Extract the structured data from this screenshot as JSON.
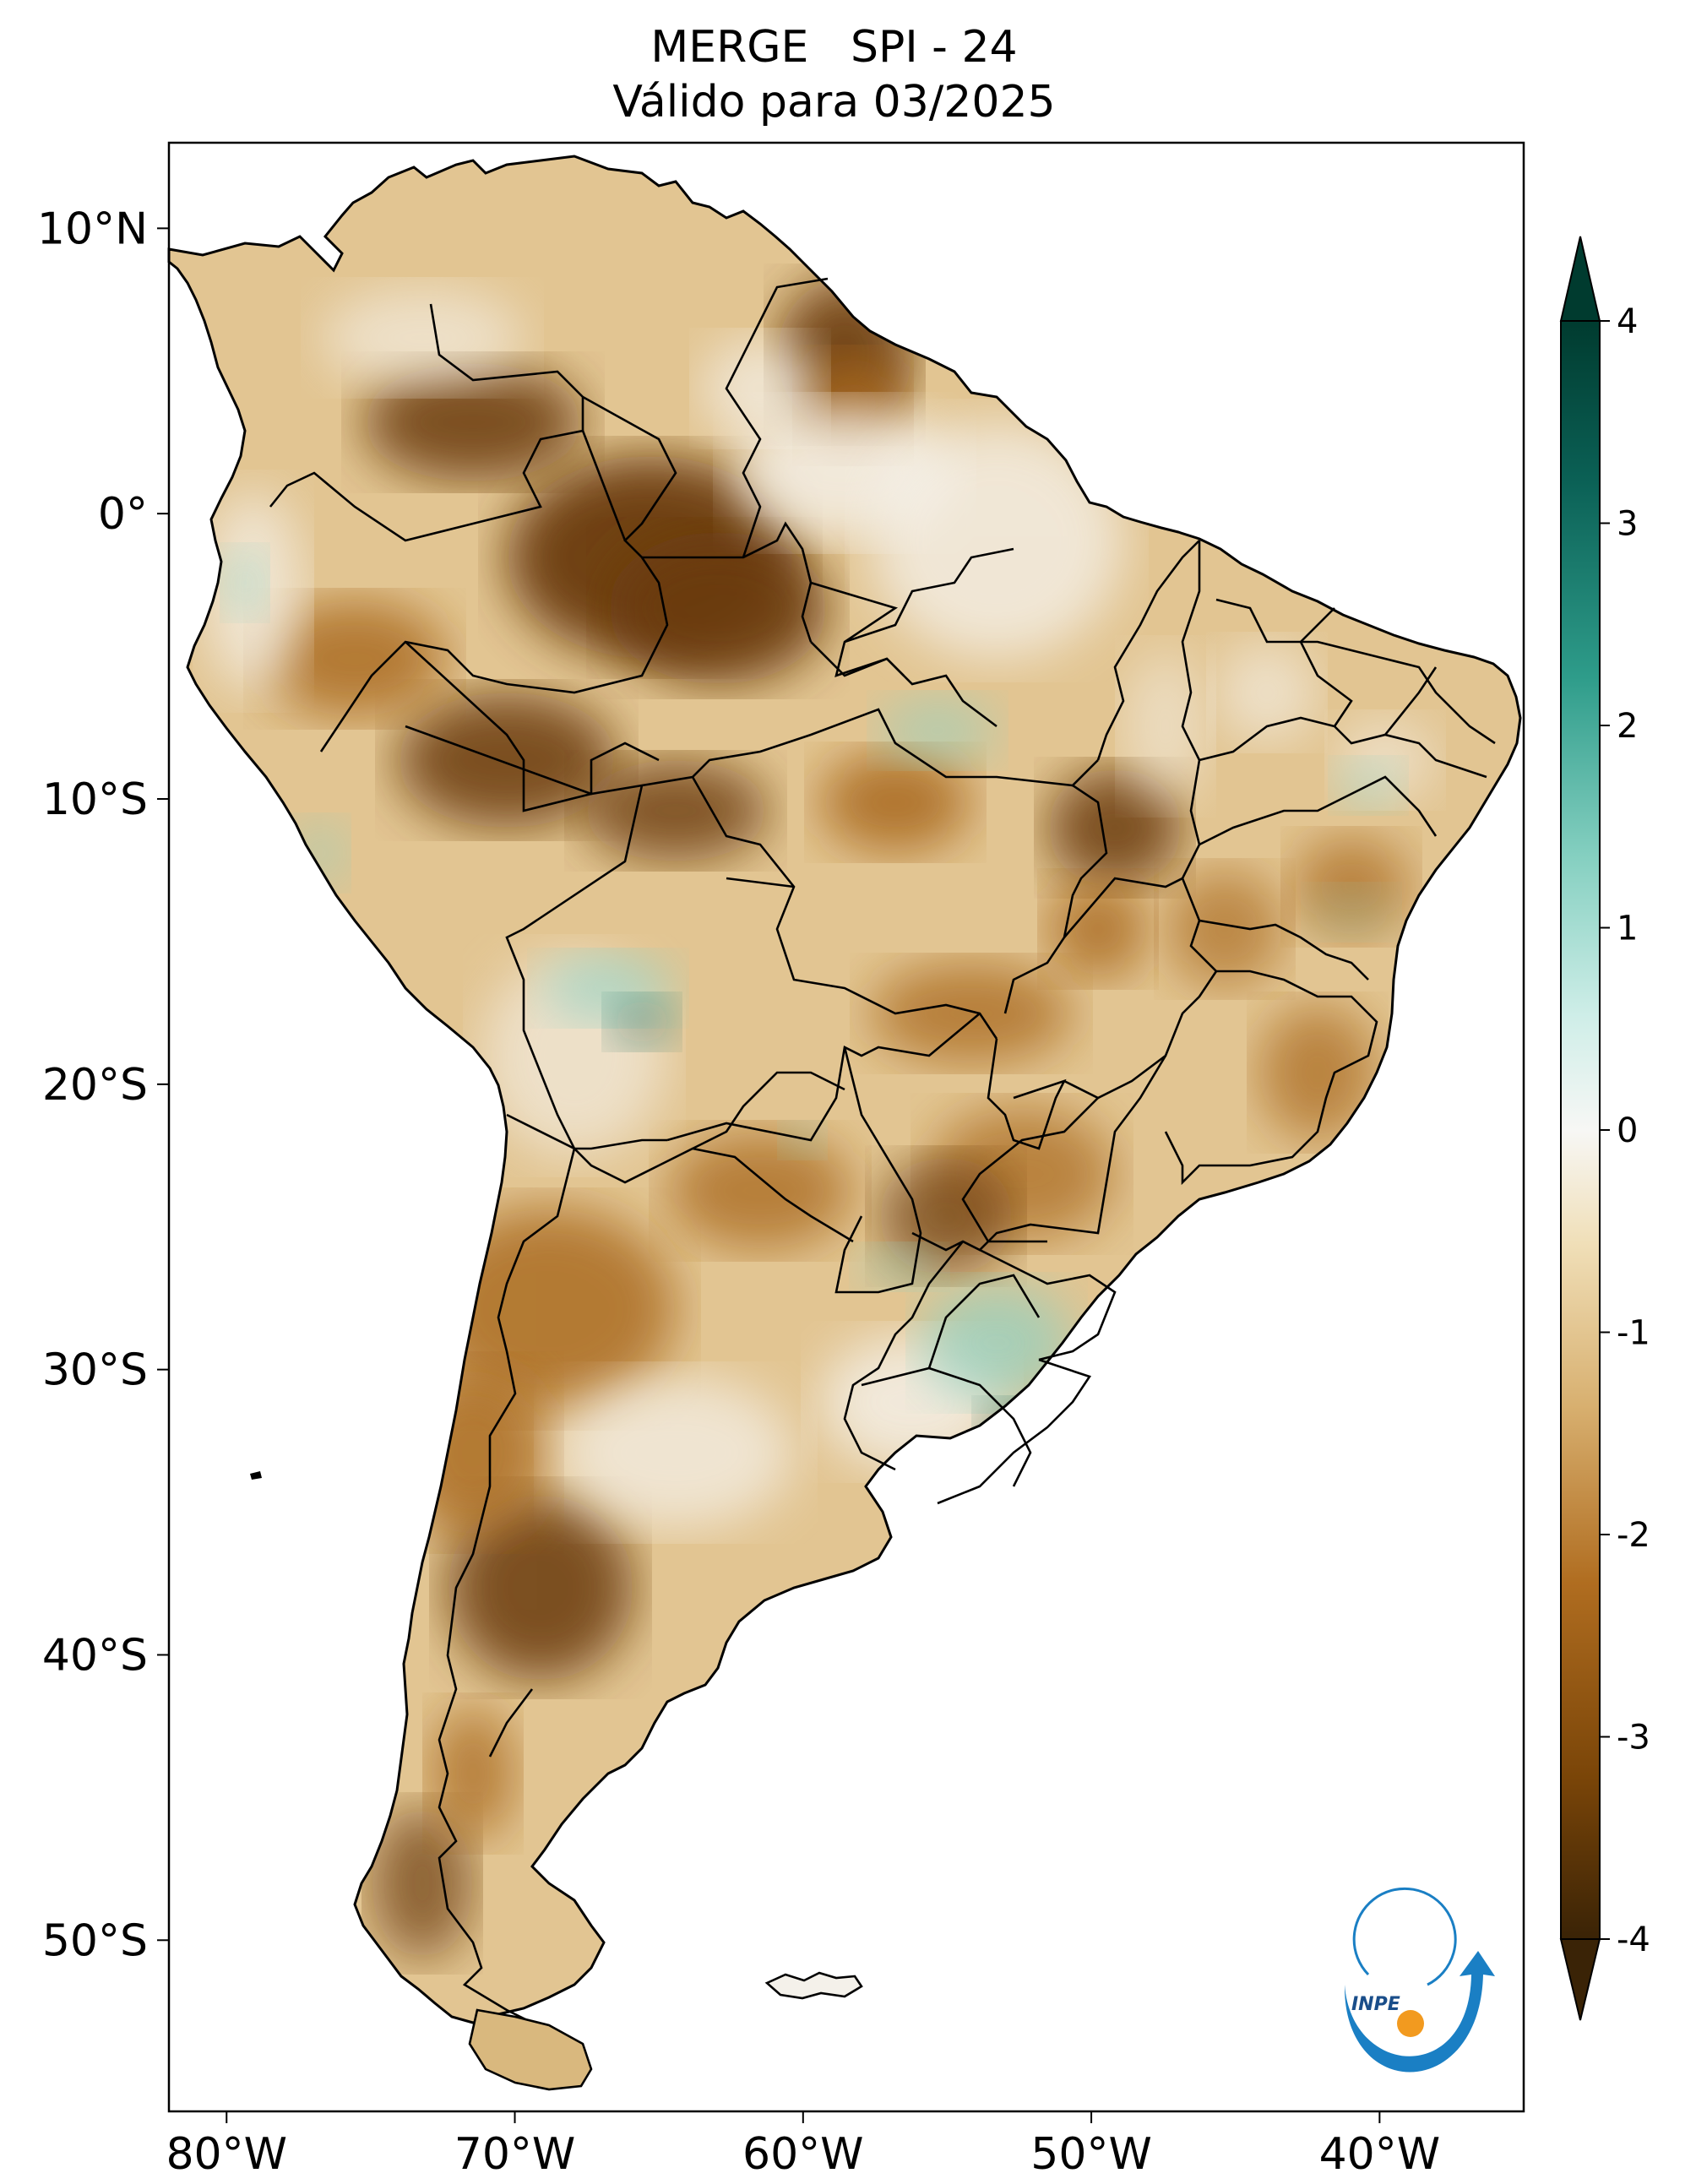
{
  "title": {
    "line1": "MERGE   SPI - 24",
    "line2": "Válido para 03/2025"
  },
  "axes": {
    "lat_ticks": [
      {
        "value": 10,
        "label": "10°N"
      },
      {
        "value": 0,
        "label": "0°"
      },
      {
        "value": -10,
        "label": "10°S"
      },
      {
        "value": -20,
        "label": "20°S"
      },
      {
        "value": -30,
        "label": "30°S"
      },
      {
        "value": -40,
        "label": "40°S"
      },
      {
        "value": -50,
        "label": "50°S"
      }
    ],
    "lon_ticks": [
      {
        "value": -80,
        "label": "80°W"
      },
      {
        "value": -70,
        "label": "70°W"
      },
      {
        "value": -60,
        "label": "60°W"
      },
      {
        "value": -50,
        "label": "50°W"
      },
      {
        "value": -40,
        "label": "40°W"
      }
    ],
    "lon_range": [
      -82,
      -35
    ],
    "lat_range": [
      -56,
      13
    ]
  },
  "colorbar": {
    "min": -4,
    "max": 4,
    "ticks": [
      {
        "value": 4,
        "label": "4"
      },
      {
        "value": 3,
        "label": "3"
      },
      {
        "value": 2,
        "label": "2"
      },
      {
        "value": 1,
        "label": "1"
      },
      {
        "value": 0,
        "label": "0"
      },
      {
        "value": -1,
        "label": "-1"
      },
      {
        "value": -2,
        "label": "-2"
      },
      {
        "value": -3,
        "label": "-3"
      },
      {
        "value": -4,
        "label": "-4"
      }
    ],
    "colormap": "BrBG",
    "extend": "both"
  },
  "logo": {
    "text": "INPE"
  },
  "colors": {
    "dry_dark": "#6b3a0a",
    "dry": "#a8681c",
    "dry_light": "#dfc28d",
    "neutral": "#f5f2ec",
    "wet": "#8fd1c4",
    "wet_dark": "#0e5f55",
    "inpe_blue": "#1a7fc4",
    "inpe_orange": "#f29a1f"
  }
}
